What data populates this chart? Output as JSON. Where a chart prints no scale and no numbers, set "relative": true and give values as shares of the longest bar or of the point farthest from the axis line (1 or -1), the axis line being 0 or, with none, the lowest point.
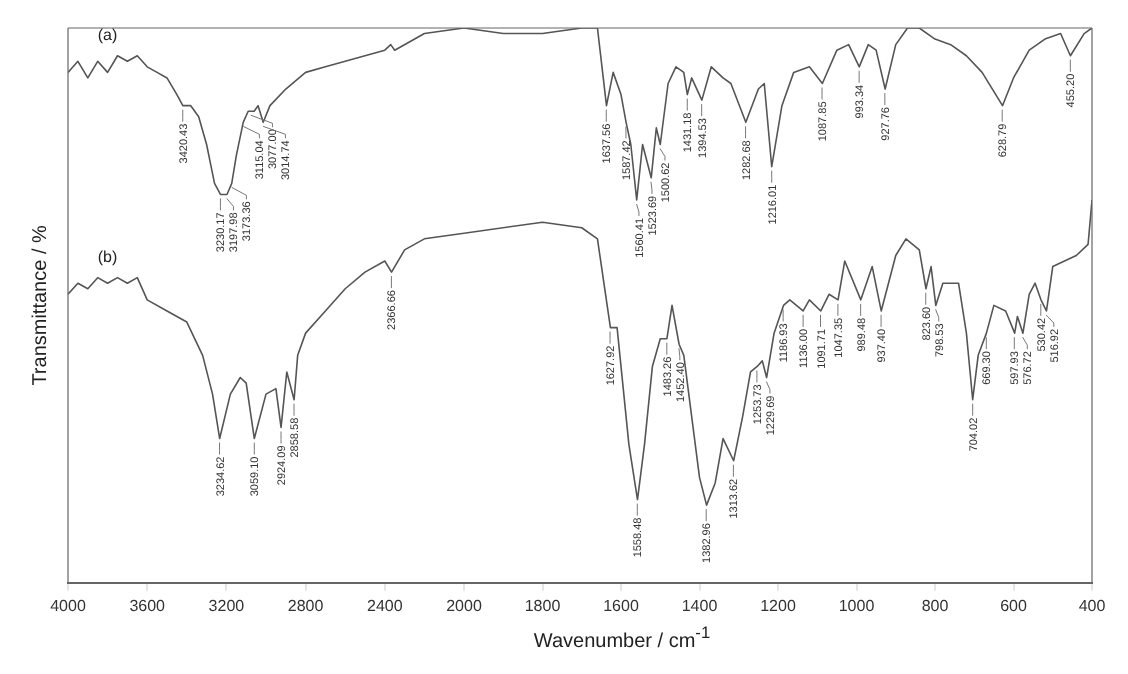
{
  "chart_data": [
    {
      "type": "line",
      "relative": true,
      "ylabel": "Transmittance / %",
      "xlim": [
        4000,
        2000
      ],
      "xticks": [
        4000,
        3600,
        3200,
        2800,
        2400
      ],
      "grid": false,
      "legend": false,
      "marker": "none",
      "line_style": "solid",
      "series": [
        {
          "name": "(a)",
          "color": "#555555",
          "x": [
            4000,
            3950,
            3900,
            3850,
            3800,
            3750,
            3700,
            3650,
            3600,
            3550,
            3500,
            3450,
            3420,
            3380,
            3340,
            3300,
            3260,
            3230,
            3197,
            3173,
            3150,
            3115,
            3090,
            3060,
            3040,
            3014,
            2980,
            2900,
            2800,
            2700,
            2600,
            2500,
            2400,
            2370,
            2350,
            2200,
            2000
          ],
          "values": [
            0.92,
            0.94,
            0.91,
            0.94,
            0.92,
            0.95,
            0.94,
            0.95,
            0.93,
            0.92,
            0.91,
            0.88,
            0.86,
            0.86,
            0.84,
            0.79,
            0.72,
            0.7,
            0.7,
            0.72,
            0.77,
            0.83,
            0.85,
            0.85,
            0.86,
            0.83,
            0.86,
            0.89,
            0.92,
            0.93,
            0.94,
            0.95,
            0.96,
            0.97,
            0.96,
            0.99,
            1.0
          ]
        },
        {
          "name": "(b)",
          "color": "#555555",
          "x": [
            4000,
            3950,
            3900,
            3850,
            3800,
            3750,
            3700,
            3650,
            3600,
            3500,
            3400,
            3320,
            3270,
            3234,
            3180,
            3130,
            3100,
            3059,
            3000,
            2950,
            2924,
            2895,
            2858,
            2840,
            2800,
            2700,
            2600,
            2500,
            2400,
            2366,
            2300,
            2200,
            2000
          ],
          "values": [
            0.52,
            0.54,
            0.53,
            0.55,
            0.54,
            0.55,
            0.54,
            0.55,
            0.51,
            0.49,
            0.47,
            0.41,
            0.34,
            0.26,
            0.34,
            0.37,
            0.36,
            0.26,
            0.34,
            0.35,
            0.28,
            0.38,
            0.33,
            0.41,
            0.45,
            0.49,
            0.53,
            0.56,
            0.58,
            0.56,
            0.6,
            0.62,
            0.63
          ]
        }
      ],
      "annotations": [
        {
          "text": "3420.43",
          "x": 3420.43,
          "y": 0.86
        },
        {
          "text": "3230.17",
          "x": 3230.17,
          "y": 0.7
        },
        {
          "text": "3173.36",
          "x": 3173.36,
          "y": 0.72
        },
        {
          "text": "3197.98",
          "x": 3197.98,
          "y": 0.7
        },
        {
          "text": "3115.04",
          "x": 3115.04,
          "y": 0.83
        },
        {
          "text": "3077.00",
          "x": 3077.0,
          "y": 0.85
        },
        {
          "text": "3014.74",
          "x": 3014.74,
          "y": 0.83
        },
        {
          "text": "3234.62",
          "x": 3234.62,
          "y": 0.26
        },
        {
          "text": "3059.10",
          "x": 3059.1,
          "y": 0.26
        },
        {
          "text": "2924.09",
          "x": 2924.09,
          "y": 0.28
        },
        {
          "text": "2858.58",
          "x": 2858.58,
          "y": 0.33
        },
        {
          "text": "2366.66",
          "x": 2366.66,
          "y": 0.56
        }
      ]
    },
    {
      "type": "line",
      "relative": true,
      "xlabel": "Wavenumber / cm$^{-1}$",
      "xlim": [
        2000,
        400
      ],
      "xticks": [
        2000,
        1800,
        1600,
        1400,
        1200,
        1000,
        800,
        600,
        400
      ],
      "grid": false,
      "legend": false,
      "marker": "none",
      "line_style": "solid",
      "series": [
        {
          "color": "#555555",
          "x": [
            2000,
            1900,
            1800,
            1700,
            1660,
            1637,
            1620,
            1600,
            1587,
            1575,
            1560,
            1545,
            1523,
            1510,
            1500,
            1480,
            1460,
            1440,
            1431,
            1420,
            1394,
            1370,
            1340,
            1320,
            1282,
            1250,
            1235,
            1216,
            1190,
            1160,
            1120,
            1087,
            1050,
            1020,
            993,
            970,
            950,
            927,
            900,
            870,
            840,
            800,
            760,
            720,
            680,
            628,
            600,
            560,
            520,
            480,
            455,
            420,
            400
          ],
          "values": [
            1.0,
            0.99,
            0.99,
            1.0,
            1.0,
            0.86,
            0.92,
            0.88,
            0.83,
            0.79,
            0.69,
            0.79,
            0.73,
            0.82,
            0.79,
            0.9,
            0.93,
            0.92,
            0.88,
            0.91,
            0.87,
            0.93,
            0.91,
            0.9,
            0.83,
            0.89,
            0.9,
            0.75,
            0.86,
            0.92,
            0.93,
            0.9,
            0.96,
            0.97,
            0.93,
            0.97,
            0.96,
            0.89,
            0.97,
            1.0,
            1.0,
            0.98,
            0.97,
            0.95,
            0.92,
            0.86,
            0.91,
            0.96,
            0.98,
            0.99,
            0.95,
            0.99,
            1.0
          ]
        },
        {
          "color": "#555555",
          "x": [
            2000,
            1800,
            1700,
            1660,
            1627,
            1610,
            1600,
            1580,
            1558,
            1540,
            1520,
            1500,
            1483,
            1470,
            1452,
            1440,
            1420,
            1400,
            1382,
            1360,
            1340,
            1313,
            1290,
            1270,
            1253,
            1240,
            1229,
            1210,
            1186,
            1170,
            1136,
            1120,
            1091,
            1070,
            1047,
            1030,
            989,
            960,
            937,
            900,
            874,
            840,
            823,
            810,
            798,
            780,
            740,
            720,
            704,
            690,
            669,
            650,
            620,
            597,
            590,
            576,
            560,
            545,
            530,
            516,
            500,
            440,
            410,
            400
          ],
          "values": [
            0.63,
            0.65,
            0.64,
            0.62,
            0.46,
            0.46,
            0.39,
            0.25,
            0.15,
            0.25,
            0.39,
            0.44,
            0.44,
            0.5,
            0.43,
            0.41,
            0.3,
            0.19,
            0.14,
            0.18,
            0.26,
            0.22,
            0.3,
            0.38,
            0.39,
            0.4,
            0.37,
            0.45,
            0.5,
            0.51,
            0.49,
            0.51,
            0.49,
            0.52,
            0.51,
            0.58,
            0.51,
            0.57,
            0.49,
            0.59,
            0.62,
            0.6,
            0.53,
            0.57,
            0.5,
            0.54,
            0.54,
            0.45,
            0.33,
            0.41,
            0.45,
            0.5,
            0.49,
            0.45,
            0.48,
            0.45,
            0.52,
            0.54,
            0.51,
            0.49,
            0.57,
            0.59,
            0.61,
            0.69
          ]
        }
      ],
      "annotations": [
        {
          "text": "1637.56",
          "x": 1637.56,
          "y": 0.86
        },
        {
          "text": "1587.42",
          "x": 1587.42,
          "y": 0.83
        },
        {
          "text": "1560.41",
          "x": 1560.41,
          "y": 0.69
        },
        {
          "text": "1523.69",
          "x": 1523.69,
          "y": 0.73
        },
        {
          "text": "1500.62",
          "x": 1500.62,
          "y": 0.79
        },
        {
          "text": "1431.18",
          "x": 1431.18,
          "y": 0.88
        },
        {
          "text": "1394.53",
          "x": 1394.53,
          "y": 0.87
        },
        {
          "text": "1282.68",
          "x": 1282.68,
          "y": 0.83
        },
        {
          "text": "1216.01",
          "x": 1216.01,
          "y": 0.75
        },
        {
          "text": "1087.85",
          "x": 1087.85,
          "y": 0.9
        },
        {
          "text": "993.34",
          "x": 993.34,
          "y": 0.93
        },
        {
          "text": "927.76",
          "x": 927.76,
          "y": 0.89
        },
        {
          "text": "628.79",
          "x": 628.79,
          "y": 0.86
        },
        {
          "text": "455.20",
          "x": 455.2,
          "y": 0.95
        },
        {
          "text": "1627.92",
          "x": 1627.92,
          "y": 0.46
        },
        {
          "text": "1558.48",
          "x": 1558.48,
          "y": 0.15
        },
        {
          "text": "1483.26",
          "x": 1483.26,
          "y": 0.44
        },
        {
          "text": "1452.40",
          "x": 1452.4,
          "y": 0.43
        },
        {
          "text": "1382.96",
          "x": 1382.96,
          "y": 0.14
        },
        {
          "text": "1313.62",
          "x": 1313.62,
          "y": 0.22
        },
        {
          "text": "1253.73",
          "x": 1253.73,
          "y": 0.39
        },
        {
          "text": "1229.69",
          "x": 1229.69,
          "y": 0.37
        },
        {
          "text": "1186.93",
          "x": 1186.93,
          "y": 0.5
        },
        {
          "text": "1136.00",
          "x": 1136.0,
          "y": 0.49
        },
        {
          "text": "1091.71",
          "x": 1091.71,
          "y": 0.49
        },
        {
          "text": "1047.35",
          "x": 1047.35,
          "y": 0.51
        },
        {
          "text": "989.48",
          "x": 989.48,
          "y": 0.51
        },
        {
          "text": "937.40",
          "x": 937.4,
          "y": 0.49
        },
        {
          "text": "823.60",
          "x": 823.6,
          "y": 0.53
        },
        {
          "text": "798.53",
          "x": 798.53,
          "y": 0.5
        },
        {
          "text": "704.02",
          "x": 704.02,
          "y": 0.33
        },
        {
          "text": "669.30",
          "x": 669.3,
          "y": 0.45
        },
        {
          "text": "597.93",
          "x": 597.93,
          "y": 0.45
        },
        {
          "text": "576.72",
          "x": 576.72,
          "y": 0.45
        },
        {
          "text": "530.42",
          "x": 530.42,
          "y": 0.51
        },
        {
          "text": "516.92",
          "x": 516.92,
          "y": 0.49
        }
      ]
    }
  ]
}
